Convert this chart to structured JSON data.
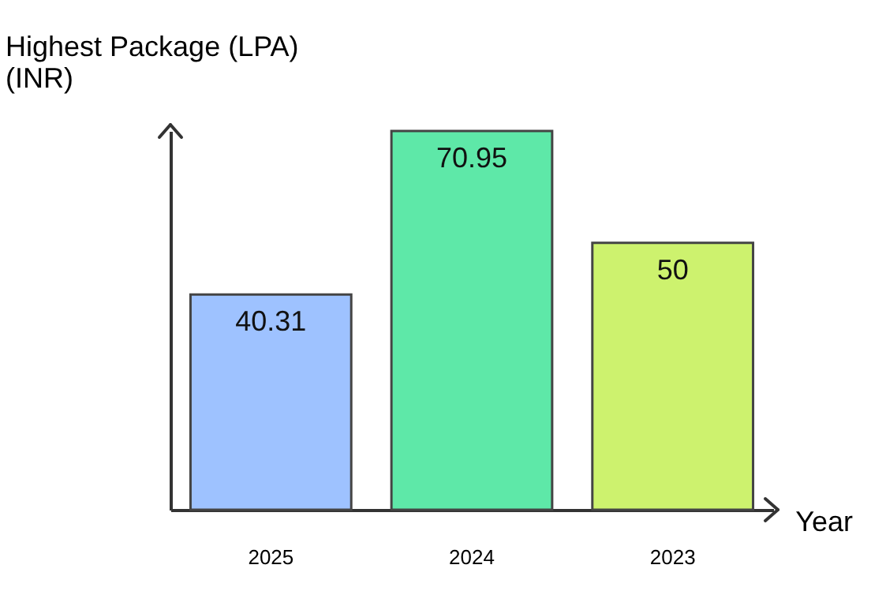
{
  "chart_data": {
    "type": "bar",
    "ylabel": "Highest Package (LPA)\n(INR)",
    "xlabel": "Year",
    "categories": [
      "2025",
      "2024",
      "2023"
    ],
    "values": [
      40.31,
      70.95,
      50
    ],
    "colors": [
      "#9ec2ff",
      "#5ee8a8",
      "#cdf26e"
    ],
    "data_labels": true,
    "grid": false
  }
}
